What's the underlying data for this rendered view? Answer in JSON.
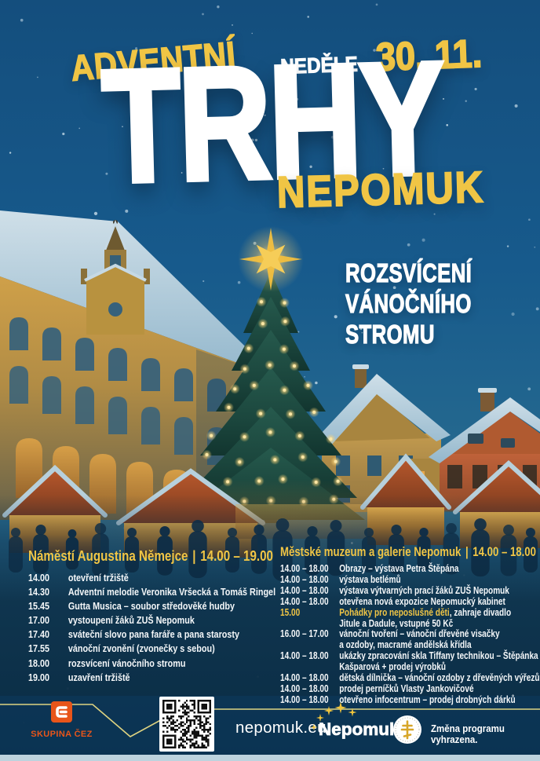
{
  "poster": {
    "pretitle": "ADVENTNÍ",
    "title": "TRHY",
    "subtitle": "NEPOMUK",
    "day_label": "NEDĚLE",
    "date": "30. 11.",
    "highlight": [
      "ROZSVÍCENÍ",
      "VÁNOČNÍHO",
      "STROMU"
    ]
  },
  "schedules": [
    {
      "title": "Náměstí Augustina Němejce",
      "separator": "|",
      "hours": "14.00 – 19.00",
      "rows": [
        {
          "time": "14.00",
          "desc": "otevření tržiště"
        },
        {
          "time": "14.30",
          "desc": "Adventní melodie Veronika Vršecká a Tomáš Ringel"
        },
        {
          "time": "15.45",
          "desc": "Gutta Musica – soubor středověké hudby"
        },
        {
          "time": "17.00",
          "desc": "vystoupení žáků ZUŠ Nepomuk"
        },
        {
          "time": "17.40",
          "desc": "sváteční slovo pana faráře a pana starosty"
        },
        {
          "time": "17.55",
          "desc": "vánoční zvonění (zvonečky s sebou)"
        },
        {
          "time": "18.00",
          "desc": "rozsvícení vánočního stromu"
        },
        {
          "time": "19.00",
          "desc": "uzavření tržiště"
        }
      ]
    },
    {
      "title": "Městské muzeum a galerie Nepomuk",
      "separator": "|",
      "hours": "14.00 – 18.00",
      "rows": [
        {
          "time": "14.00 – 18.00",
          "desc": "Obrazy – výstava Petra Štěpána"
        },
        {
          "time": "14.00 – 18.00",
          "desc": "výstava betlémů"
        },
        {
          "time": "14.00 – 18.00",
          "desc": "výstava výtvarných prací žáků ZUŠ Nepomuk"
        },
        {
          "time": "14.00 – 18.00",
          "desc": "otevřena nová expozice Nepomucký kabinet"
        },
        {
          "time": "15.00",
          "accent": true,
          "desc_accent": "Pohádky pro neposlušné děti",
          "desc": ", zahraje divadlo",
          "desc2": "Jitule a Dadule, vstupné 50 Kč"
        },
        {
          "time": "16.00 – 17.00",
          "desc": "vánoční tvoření – vánoční dřevěné visačky",
          "desc2": "a ozdoby, macramé andělská křídla"
        },
        {
          "time": "14.00 – 18.00",
          "desc": "ukázky zpracování skla Tiffany technikou – Štěpánka",
          "desc2": "Kašparová + prodej výrobků"
        },
        {
          "time": "14.00 – 18.00",
          "desc": "dětská dílnička – vánoční ozdoby z dřevěných výřezů"
        },
        {
          "time": "14.00 – 18.00",
          "desc": "prodej perníčků Vlasty Jankovičové"
        },
        {
          "time": "14.00 – 18.00",
          "desc": "otevřeno infocentrum – prodej drobných dárků"
        }
      ]
    }
  ],
  "footer": {
    "cez_label": "SKUPINA ČEZ",
    "website": "nepomuk.eu",
    "city_name": "Nepomuk",
    "disclaimer": "Změna programu vyhrazena."
  },
  "colors": {
    "accent_yellow": "#f0c545",
    "sky_blue": "#17598c",
    "panel_dark": "#0c3a5e",
    "cez_orange": "#e8551a",
    "footer_line": "#ded381",
    "bottom_strip": "#bdd3de"
  }
}
